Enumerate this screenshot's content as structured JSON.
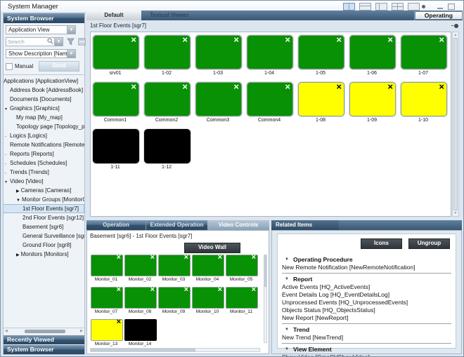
{
  "window": {
    "title": "System Manager"
  },
  "colors": {
    "tile_green": "#089104",
    "tile_yellow": "#ffff00",
    "tile_black": "#000000",
    "header_dark": "#35536f",
    "active_tab_light": "#8ba4b9"
  },
  "icons": [
    "layout-two-columns-icon",
    "layout-top-row-icon",
    "layout-left-pane-icon",
    "layout-quad-icon",
    "layout-single-icon",
    "pin-icon",
    "minimize-icon",
    "maximize-icon",
    "search-icon",
    "filter-funnel-icon",
    "save-floppy-icon",
    "chevron-down-icon",
    "close-icon",
    "scroll-arrows"
  ],
  "sidebar": {
    "header": "System Browser",
    "view_select_value": "Application View",
    "search_placeholder": "Search",
    "description_select_value": "Show Description [Nam",
    "manual_checkbox_label": "Manual",
    "send_button": "Send",
    "tree": [
      {
        "label": "Applications [ApplicationView]",
        "level": 0
      },
      {
        "label": "Address Book [AddressBook]",
        "level": 1
      },
      {
        "label": "Documents [Documents]",
        "level": 1
      },
      {
        "label": "Graphics [Graphics]",
        "level": 1,
        "glyph": "twisty"
      },
      {
        "label": "My map [My_map]",
        "level": 2
      },
      {
        "label": "Topology page [Topology_page]",
        "level": 2
      },
      {
        "label": "Logics [Logics]",
        "level": 1,
        "glyph": "dash"
      },
      {
        "label": "Remote Notifications [RemoteNotificat",
        "level": 1
      },
      {
        "label": "Reports [Reports]",
        "level": 1,
        "glyph": "dash"
      },
      {
        "label": "Schedules [Schedules]",
        "level": 1,
        "glyph": "dash"
      },
      {
        "label": "Trends [Trends]",
        "level": 1,
        "glyph": "dash"
      },
      {
        "label": "Video [Video]",
        "level": 1,
        "glyph": "twisty"
      },
      {
        "label": "Cameras [Cameras]",
        "level": 2,
        "glyph": "arrow-right"
      },
      {
        "label": "Monitor Groups [MonitorGroups]",
        "level": 2,
        "glyph": "arrow-down"
      },
      {
        "label": "1st Floor Events [sgr7]",
        "level": 3,
        "selected": true
      },
      {
        "label": "2nd Floor Events [sgr12]",
        "level": 3
      },
      {
        "label": "Basement [sgr6]",
        "level": 3
      },
      {
        "label": "General Surveillance [sgr13]",
        "level": 3
      },
      {
        "label": "Ground Floor [sgr8]",
        "level": 3
      },
      {
        "label": "Monitors [Monitors]",
        "level": 2,
        "glyph": "arrow-right"
      }
    ],
    "collapsed_panels": [
      "Recently Viewed",
      "System Browser"
    ]
  },
  "main": {
    "tabs": [
      {
        "label": "Default",
        "active": true
      },
      {
        "label": "Textual Viewer",
        "active": false
      }
    ],
    "mode_button": "Operating",
    "group_title": "1st Floor Events [sgr7]",
    "tiles": [
      {
        "label": "srv01",
        "color": "green",
        "close": true
      },
      {
        "label": "1-02",
        "color": "green",
        "close": true
      },
      {
        "label": "1-03",
        "color": "green",
        "close": true
      },
      {
        "label": "1-04",
        "color": "green",
        "close": true
      },
      {
        "label": "1-05",
        "color": "green",
        "close": true
      },
      {
        "label": "1-06",
        "color": "green",
        "close": true
      },
      {
        "label": "1-07",
        "color": "green",
        "close": true
      },
      {
        "label": "Common1",
        "color": "green",
        "close": true
      },
      {
        "label": "Common2",
        "color": "green",
        "close": true
      },
      {
        "label": "Common3",
        "color": "green",
        "close": true
      },
      {
        "label": "Common4",
        "color": "green",
        "close": true
      },
      {
        "label": "1-08",
        "color": "yellow",
        "close": true
      },
      {
        "label": "1-09",
        "color": "yellow",
        "close": true
      },
      {
        "label": "1-10",
        "color": "yellow",
        "close": true
      },
      {
        "label": "1-11",
        "color": "black",
        "close": false
      },
      {
        "label": "1-12",
        "color": "black",
        "close": false
      }
    ]
  },
  "operation_panel": {
    "tabs": [
      {
        "label": "Operation",
        "active": false
      },
      {
        "label": "Extended Operation",
        "active": false
      },
      {
        "label": "Video Controls",
        "active": true
      }
    ],
    "caption": "Basement [sgr6] - 1st Floor Events [sgr7]",
    "video_wall_button": "Video Wall",
    "monitors": [
      {
        "label": "Monitor_01",
        "color": "green",
        "close": true
      },
      {
        "label": "Monitor_02",
        "color": "green",
        "close": true
      },
      {
        "label": "Monitor_03",
        "color": "green",
        "close": true
      },
      {
        "label": "Monitor_04",
        "color": "green",
        "close": true
      },
      {
        "label": "Monitor_05",
        "color": "green",
        "close": true
      },
      {
        "label": "Monitor_07",
        "color": "green",
        "close": true
      },
      {
        "label": "Monitor_08",
        "color": "green",
        "close": true
      },
      {
        "label": "Monitor_09",
        "color": "green",
        "close": true
      },
      {
        "label": "Monitor_10",
        "color": "green",
        "close": true
      },
      {
        "label": "Monitor_11",
        "color": "green",
        "close": true
      },
      {
        "label": "Monitor_13",
        "color": "yellow",
        "close": true
      },
      {
        "label": "Monitor_14",
        "color": "black",
        "close": false
      }
    ]
  },
  "related_items": {
    "tab": "Related Items",
    "buttons": [
      "Icons",
      "Ungroup"
    ],
    "sections": [
      {
        "title": "Operating Procedure",
        "items": [
          "New Remote Notification [NewRemoteNotification]"
        ]
      },
      {
        "title": "Report",
        "items": [
          "Active Events [HQ_ActiveEvents]",
          "Event Details Log [HQ_EventDetailsLog]",
          "Unprocessed Events [HQ_UnprocessedEvents]",
          "Objects Status [HQ_ObjectsStatus]",
          "New Report [NewReport]"
        ]
      },
      {
        "title": "Trend",
        "items": [
          "New Trend [NewTrend]"
        ]
      },
      {
        "title": "View Element",
        "items": [
          "Show Video [GmsCVShowVideo]"
        ]
      }
    ]
  }
}
